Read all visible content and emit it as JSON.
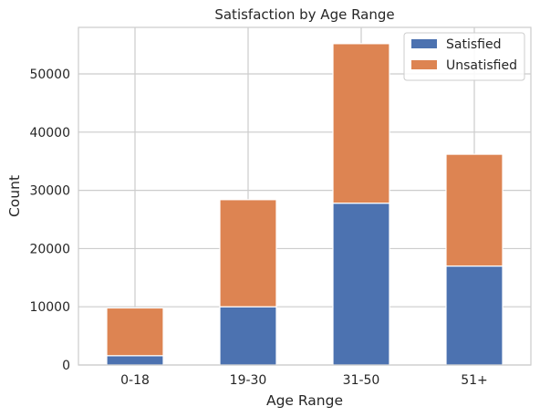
{
  "chart_data": {
    "type": "bar",
    "stacked": true,
    "title": "Satisfaction by Age Range",
    "xlabel": "Age Range",
    "ylabel": "Count",
    "categories": [
      "0-18",
      "19-30",
      "31-50",
      "51+"
    ],
    "series": [
      {
        "name": "Satisfied",
        "values": [
          1600,
          10000,
          27800,
          17000
        ],
        "color": "#4c72b0"
      },
      {
        "name": "Unsatisfied",
        "values": [
          8200,
          18400,
          27400,
          19200
        ],
        "color": "#dd8452"
      }
    ],
    "ylim": [
      0,
      58000
    ],
    "yticks": [
      0,
      10000,
      20000,
      30000,
      40000,
      50000
    ],
    "grid": true,
    "legend_position": "top-right"
  }
}
